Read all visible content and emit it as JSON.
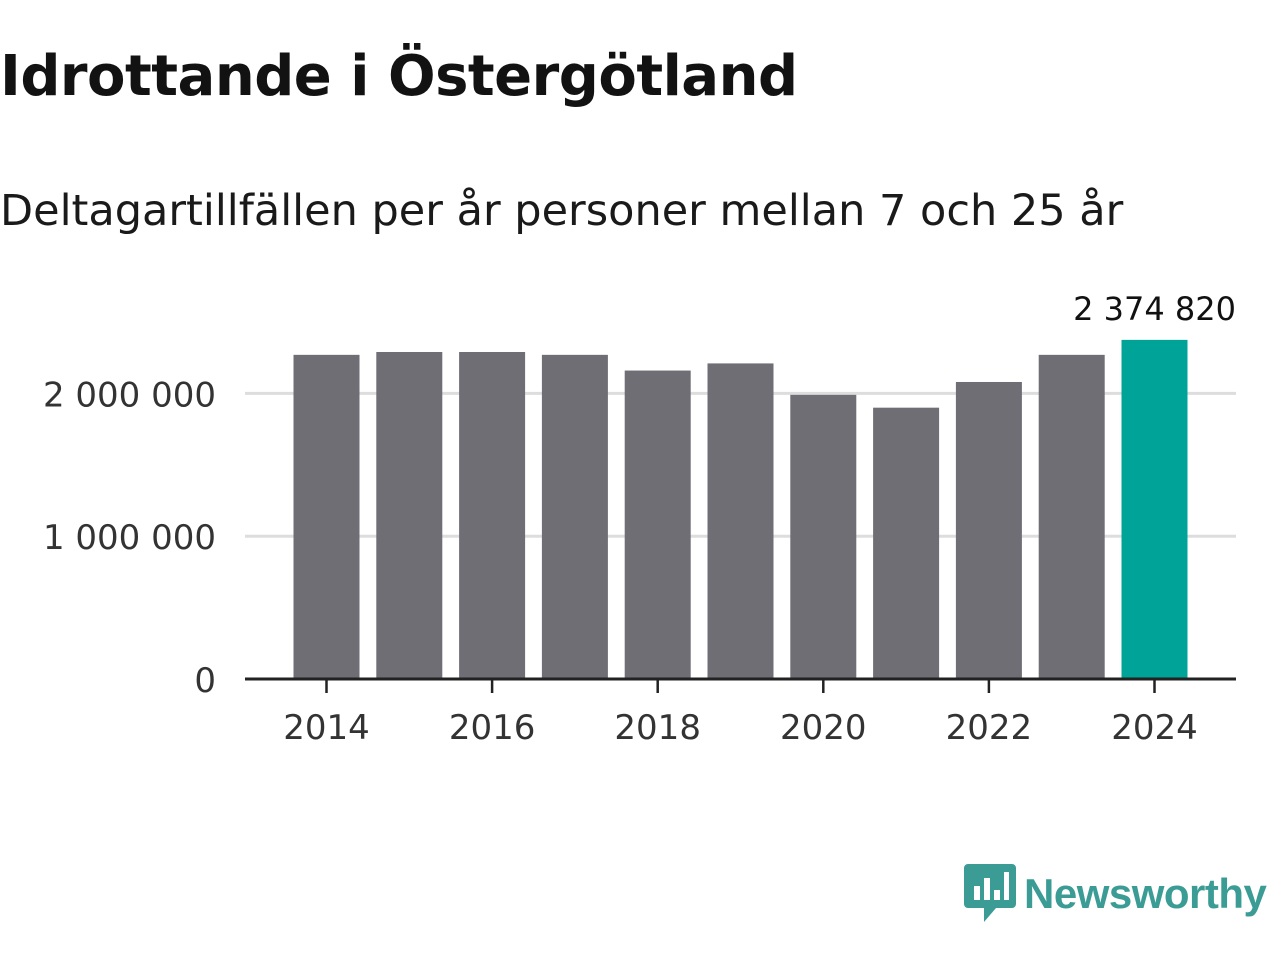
{
  "title": "Idrottande i Östergötland",
  "subtitle": "Deltagartillfällen per år personer mellan 7 och 25 år",
  "brand": {
    "name": "Newsworthy",
    "logo_icon": "newsworthy-logo-icon",
    "color": "#3b9c95"
  },
  "colors": {
    "bar": "#6f6e75",
    "highlight": "#00a398",
    "grid": "#dddddd",
    "axis": "#222222",
    "text": "#333333"
  },
  "chart_data": {
    "type": "bar",
    "title": "Idrottande i Östergötland",
    "subtitle": "Deltagartillfällen per år personer mellan 7 och 25 år",
    "xlabel": "",
    "ylabel": "",
    "categories": [
      "2014",
      "2015",
      "2016",
      "2017",
      "2018",
      "2019",
      "2020",
      "2021",
      "2022",
      "2023",
      "2024"
    ],
    "values": [
      2270000,
      2290000,
      2290000,
      2270000,
      2160000,
      2210000,
      1990000,
      1900000,
      2080000,
      2270000,
      2374820
    ],
    "highlight_index": 10,
    "highlight_label": "2 374 820",
    "ylim": [
      0,
      2500000
    ],
    "yticks": [
      0,
      1000000,
      2000000
    ],
    "ytick_labels": [
      "0",
      "1 000 000",
      "2 000 000"
    ],
    "xtick_labels": [
      "2014",
      "2016",
      "2018",
      "2020",
      "2022",
      "2024"
    ],
    "grid": true
  }
}
